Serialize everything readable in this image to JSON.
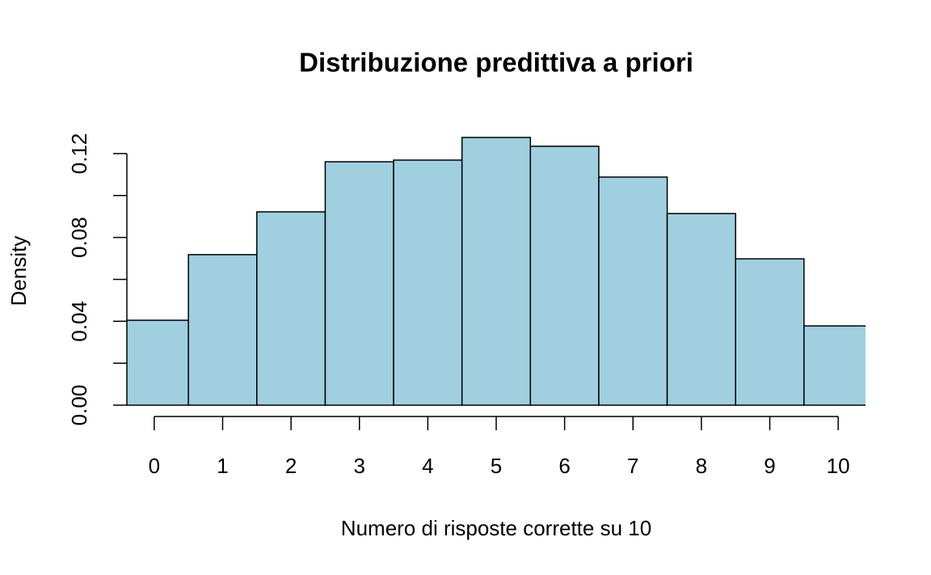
{
  "chart_data": {
    "type": "histogram",
    "title": "Distribuzione predittiva a priori",
    "x_label": "Numero di risposte corrette su 10",
    "y_label": "Density",
    "bins": [
      -0.5,
      0.5,
      1.5,
      2.5,
      3.5,
      4.5,
      5.5,
      6.5,
      7.5,
      8.5,
      9.5,
      10.5
    ],
    "values": [
      0.0405,
      0.0718,
      0.0922,
      0.1161,
      0.1169,
      0.1277,
      0.1235,
      0.1088,
      0.0914,
      0.0698,
      0.0378
    ],
    "color": "#a0cfe0",
    "xlim": [
      -0.4,
      10.4
    ],
    "xticks": [
      0,
      1,
      2,
      3,
      4,
      5,
      6,
      7,
      8,
      9,
      10
    ],
    "ylim": [
      0,
      0.13
    ],
    "yticks": [
      {
        "value": 0,
        "label": "0.00"
      },
      0.04,
      0.08,
      0.12
    ],
    "minor_yticks": [
      0.02,
      0.06,
      0.1
    ]
  }
}
